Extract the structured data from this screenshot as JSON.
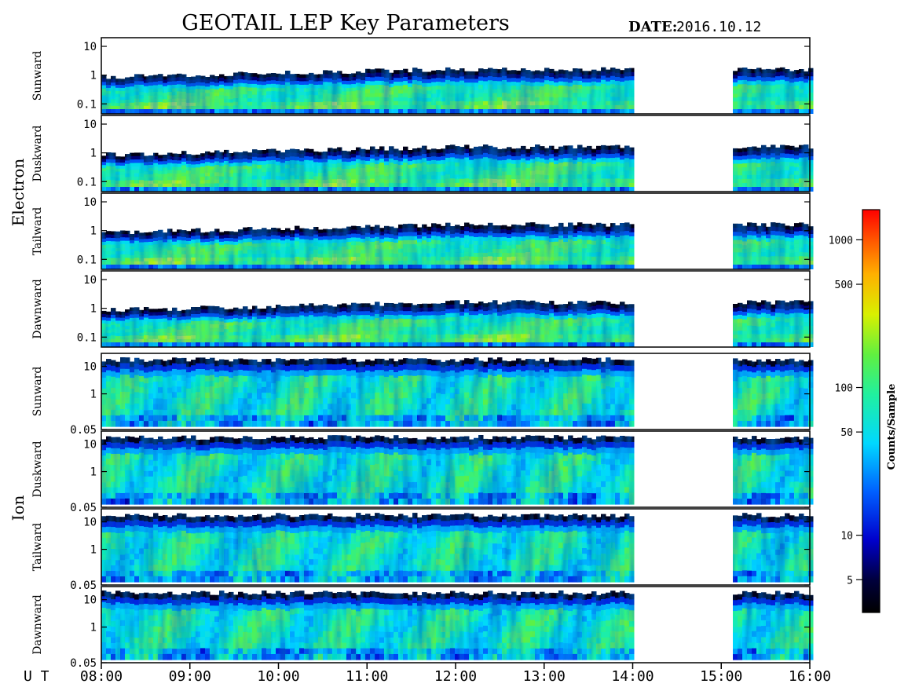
{
  "chart_data": {
    "type": "heatmap",
    "title": "GEOTAIL LEP Key Parameters",
    "date_label": "DATE:",
    "date_value": "2016.10.12",
    "xlabel": "U T",
    "x_ticks": [
      "08:00",
      "09:00",
      "10:00",
      "11:00",
      "12:00",
      "13:00",
      "14:00",
      "15:00",
      "16:00"
    ],
    "x_range_hours": [
      8,
      16
    ],
    "data_gaps_hours": [
      [
        14.0,
        15.08
      ]
    ],
    "colorbar": {
      "label": "Counts/Sample",
      "scale": "log",
      "range": [
        3,
        1600
      ],
      "ticks": [
        "5",
        "10",
        "50",
        "100",
        "500",
        "1000"
      ],
      "tick_values": [
        5,
        10,
        50,
        100,
        500,
        1000
      ]
    },
    "groups": [
      {
        "name": "Electron",
        "y_scale": "log",
        "y_range": [
          0.045,
          20
        ],
        "y_ticks": [
          "10",
          "1",
          "0.1"
        ],
        "y_tick_values": [
          10,
          1,
          0.1
        ],
        "panels": [
          {
            "name": "Sunward"
          },
          {
            "name": "Duskward"
          },
          {
            "name": "Tailward"
          },
          {
            "name": "Dawnward"
          }
        ]
      },
      {
        "name": "Ion",
        "y_scale": "log",
        "y_range": [
          0.05,
          30
        ],
        "y_ticks": [
          "10",
          "1",
          "0.05"
        ],
        "y_tick_values": [
          10,
          1,
          0.05
        ],
        "panels": [
          {
            "name": "Sunward"
          },
          {
            "name": "Duskward"
          },
          {
            "name": "Tailward"
          },
          {
            "name": "Dawnward"
          }
        ]
      }
    ]
  }
}
